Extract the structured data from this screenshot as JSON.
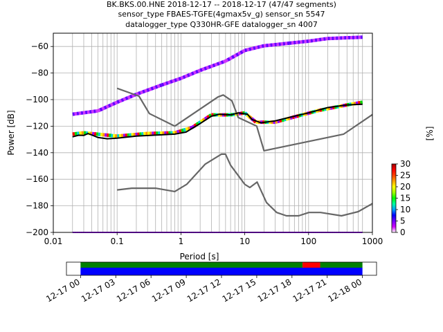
{
  "title_lines": [
    "BK.BKS.00.HNE   2018-12-17 -- 2018-12-17  (47/47 segments)",
    "sensor_type FBAES-TGFE(4gmax5v_g) sensor_sn 5547",
    "datalogger_type Q330HR-GFE datalogger_sn 4007"
  ],
  "chart_data": [
    {
      "type": "line",
      "xscale": "log",
      "xlabel": "Period [s]",
      "ylabel": "Power [dB]",
      "xlim": [
        0.01,
        1000
      ],
      "ylim": [
        -200,
        -50
      ],
      "xticks": [
        {
          "v": 0.01,
          "label": "0.01"
        },
        {
          "v": 0.1,
          "label": "0.1"
        },
        {
          "v": 1,
          "label": "1"
        },
        {
          "v": 10,
          "label": "10"
        },
        {
          "v": 100,
          "label": "100"
        },
        {
          "v": 1000,
          "label": "1000"
        }
      ],
      "yticks": [
        {
          "v": -60,
          "label": "−60"
        },
        {
          "v": -80,
          "label": "−80"
        },
        {
          "v": -100,
          "label": "−100"
        },
        {
          "v": -120,
          "label": "−120"
        },
        {
          "v": -140,
          "label": "−140"
        },
        {
          "v": -160,
          "label": "−160"
        },
        {
          "v": -180,
          "label": "−180"
        },
        {
          "v": -200,
          "label": "−200"
        }
      ],
      "grid": true,
      "grid_periods": [
        0.02,
        0.03,
        0.04,
        0.05,
        0.06,
        0.07,
        0.08,
        0.09,
        0.1,
        0.2,
        0.3,
        0.4,
        0.5,
        0.6,
        0.7,
        0.8,
        0.9,
        1,
        2,
        3,
        4,
        5,
        6,
        7,
        8,
        9,
        10,
        20,
        30,
        40,
        50,
        60,
        70,
        80,
        90,
        100,
        200,
        300,
        400,
        500,
        600,
        700
      ],
      "grid_colors": {
        "grid": "#b0b0b0",
        "axes": "#000000"
      },
      "series": [
        {
          "role": "high-noise-model",
          "color": "#666666",
          "points": [
            [
              0.1,
              -91.5
            ],
            [
              0.22,
              -97.4
            ],
            [
              0.32,
              -110.5
            ],
            [
              0.8,
              -120
            ],
            [
              3.8,
              -98
            ],
            [
              4.6,
              -96.5
            ],
            [
              6.3,
              -101
            ],
            [
              7.9,
              -113.5
            ],
            [
              15.4,
              -120
            ],
            [
              20,
              -138.5
            ],
            [
              354.8,
              -126
            ],
            [
              1000,
              -111.3
            ]
          ]
        },
        {
          "role": "low-noise-model",
          "color": "#666666",
          "points": [
            [
              0.1,
              -168
            ],
            [
              0.17,
              -166.7
            ],
            [
              0.4,
              -166.7
            ],
            [
              0.8,
              -169.2
            ],
            [
              1.24,
              -163.7
            ],
            [
              2.4,
              -148.6
            ],
            [
              4.3,
              -141.1
            ],
            [
              5,
              -141.1
            ],
            [
              6,
              -149.4
            ],
            [
              10,
              -163.8
            ],
            [
              12,
              -166.2
            ],
            [
              15.6,
              -162.1
            ],
            [
              21.9,
              -177.5
            ],
            [
              31.6,
              -185
            ],
            [
              45,
              -187.5
            ],
            [
              70,
              -187.5
            ],
            [
              101,
              -185
            ],
            [
              154,
              -185
            ],
            [
              328,
              -187.5
            ],
            [
              600,
              -184.4
            ],
            [
              1000,
              -178.3
            ]
          ]
        },
        {
          "role": "mean",
          "color": "#000000",
          "points": [
            [
              0.02,
              -128
            ],
            [
              0.025,
              -126.8
            ],
            [
              0.03,
              -127
            ],
            [
              0.035,
              -125.5
            ],
            [
              0.05,
              -128.5
            ],
            [
              0.07,
              -129.5
            ],
            [
              0.1,
              -129
            ],
            [
              0.2,
              -127.5
            ],
            [
              0.5,
              -126.5
            ],
            [
              0.8,
              -126
            ],
            [
              1.2,
              -124.5
            ],
            [
              2,
              -118
            ],
            [
              3,
              -112.5
            ],
            [
              4,
              -111
            ],
            [
              6,
              -111.5
            ],
            [
              8,
              -110
            ],
            [
              11,
              -111
            ],
            [
              13,
              -115
            ],
            [
              18,
              -117.5
            ],
            [
              30,
              -116
            ],
            [
              60,
              -112.5
            ],
            [
              100,
              -110
            ],
            [
              200,
              -106
            ],
            [
              400,
              -104
            ],
            [
              700,
              -103.5
            ]
          ]
        }
      ],
      "pdf_bands": [
        {
          "points": [
            [
              0.02,
              -111
            ],
            [
              0.05,
              -108.5
            ],
            [
              0.1,
              -102
            ],
            [
              0.2,
              -96
            ],
            [
              0.5,
              -89
            ],
            [
              1,
              -84
            ],
            [
              2,
              -78
            ],
            [
              5,
              -71
            ],
            [
              10,
              -63
            ],
            [
              20,
              -59.5
            ],
            [
              50,
              -57.5
            ],
            [
              100,
              -56
            ],
            [
              200,
              -54
            ],
            [
              700,
              -53
            ]
          ],
          "colors": [
            "#6600ff",
            "#cc33ff"
          ]
        },
        {
          "points": [
            [
              0.02,
              -126
            ],
            [
              0.03,
              -125
            ],
            [
              0.1,
              -127.5
            ],
            [
              0.3,
              -125.5
            ],
            [
              0.8,
              -125
            ],
            [
              1.5,
              -121
            ],
            [
              3,
              -111.5
            ],
            [
              6,
              -111.5
            ],
            [
              10,
              -110
            ],
            [
              15,
              -117
            ],
            [
              30,
              -117
            ],
            [
              60,
              -113
            ],
            [
              150,
              -108
            ],
            [
              400,
              -104
            ],
            [
              700,
              -102
            ]
          ],
          "colors": [
            "#ff0000",
            "#00dd00",
            "#00cccc",
            "#ffff00",
            "#ff9900",
            "#9900ff"
          ]
        },
        {
          "points": [
            [
              0.02,
              -200
            ],
            [
              700,
              -200
            ]
          ],
          "colors": [
            "#9900ff"
          ]
        }
      ],
      "colorbar": {
        "label": "[%]",
        "range": [
          0,
          30
        ],
        "ticks": [
          0,
          5,
          10,
          15,
          20,
          25,
          30
        ],
        "colormap": [
          "#ffffff",
          "#d000ff",
          "#7000ff",
          "#0000ff",
          "#00a0ff",
          "#00ffa0",
          "#00ff00",
          "#a0ff00",
          "#ffff00",
          "#ffa000",
          "#ff4000",
          "#ff0000",
          "#a00000"
        ]
      }
    },
    {
      "type": "timeline",
      "title": "",
      "time_range": [
        "12-17 00",
        "12-18 00"
      ],
      "xticks": [
        "12-17 00",
        "12-17 03",
        "12-17 06",
        "12-17 09",
        "12-17 12",
        "12-17 15",
        "12-17 18",
        "12-17 21",
        "12-18 00"
      ],
      "data_start_hours": 0,
      "data_end_hours": 24,
      "axis_start_hours": -1.2,
      "axis_end_hours": 25.2,
      "rows": [
        {
          "color": "#008000",
          "segments": [
            [
              0,
              18.9
            ],
            [
              20.4,
              24
            ]
          ]
        },
        {
          "color": "#ff0000",
          "segments": [
            [
              18.9,
              20.4
            ]
          ]
        },
        {
          "color": "#0000ff",
          "segments": [
            [
              0,
              24
            ]
          ]
        }
      ]
    }
  ]
}
